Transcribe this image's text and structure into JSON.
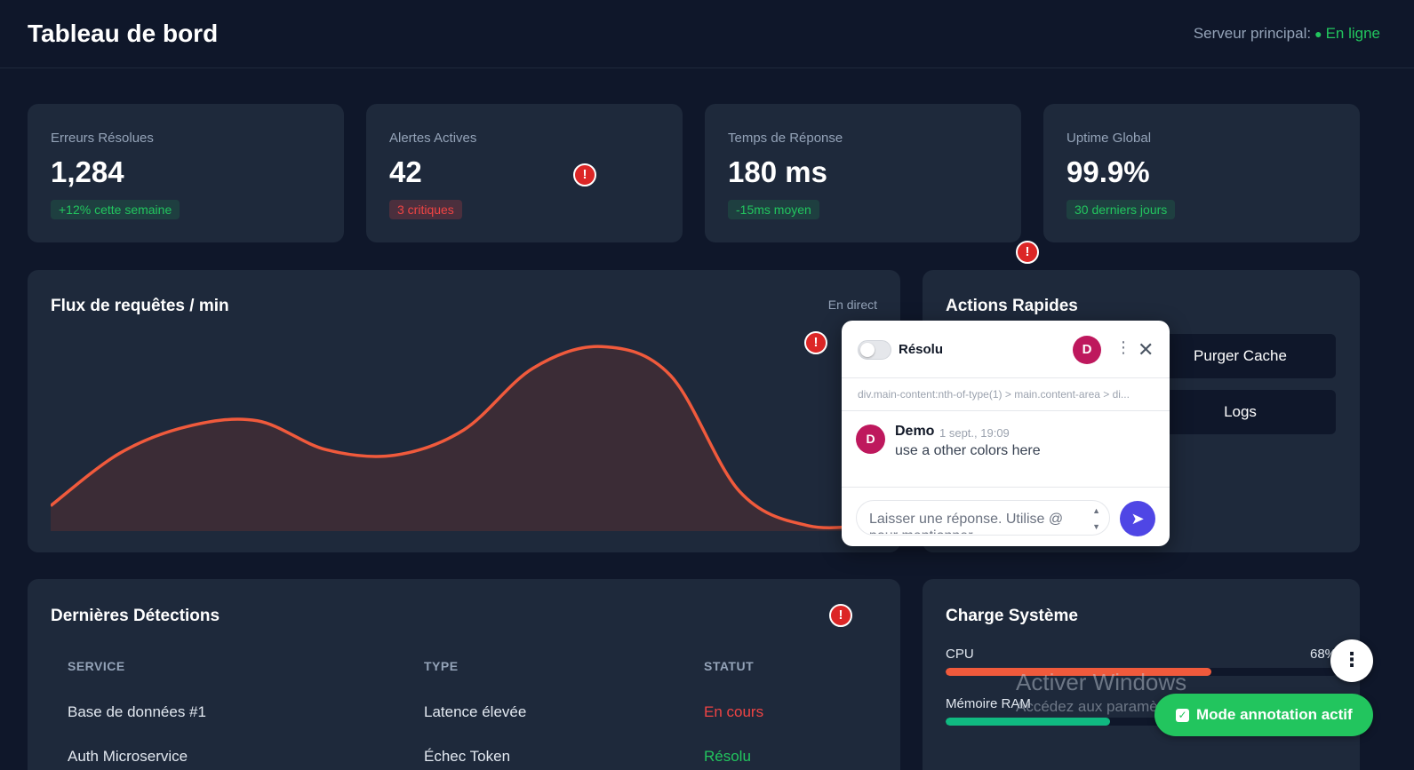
{
  "header": {
    "title": "Tableau de bord",
    "server_label": "Serveur principal:",
    "server_status": "En ligne"
  },
  "stats": [
    {
      "label": "Erreurs Résolues",
      "value": "1,284",
      "badge": "+12% cette semaine"
    },
    {
      "label": "Alertes Actives",
      "value": "42",
      "badge": "3 critiques"
    },
    {
      "label": "Temps de Réponse",
      "value": "180 ms",
      "badge": "-15ms moyen"
    },
    {
      "label": "Uptime Global",
      "value": "99.9%",
      "badge": "30 derniers jours"
    }
  ],
  "traffic": {
    "title": "Flux de requêtes / min",
    "live_label": "En direct"
  },
  "chart_data": {
    "type": "area",
    "title": "Flux de requêtes / min",
    "x": [
      0,
      1,
      2,
      3,
      4,
      5,
      6,
      7,
      8,
      9,
      10,
      11,
      12
    ],
    "values": [
      14,
      43,
      58,
      61,
      45,
      42,
      56,
      90,
      102,
      86,
      22,
      3,
      4
    ],
    "ylim": [
      0,
      110
    ],
    "line_color": "#f05a3c",
    "fill_color": "#3b2c36",
    "grid": false
  },
  "actions": {
    "title": "Actions Rapides",
    "purge_label": "Purger Cache",
    "logs_label": "Logs"
  },
  "detections": {
    "title": "Dernières Détections",
    "columns": [
      "SERVICE",
      "TYPE",
      "STATUT"
    ],
    "rows": [
      {
        "service": "Base de données #1",
        "type": "Latence élevée",
        "status": "En cours"
      },
      {
        "service": "Auth Microservice",
        "type": "Échec Token",
        "status": "Résolu"
      }
    ]
  },
  "system_load": {
    "title": "Charge Système",
    "cpu_label": "CPU",
    "cpu_value": "68%",
    "cpu_fraction": 0.68,
    "ram_label": "Mémoire RAM",
    "ram_fraction": 0.42
  },
  "comment_popup": {
    "toggle_label": "Résolu",
    "avatar_letter": "D",
    "selector": "div.main-content:nth-of-type(1) > main.content-area > di...",
    "author": "Demo",
    "time": "1 sept., 19:09",
    "text": "use a other colors here",
    "reply_placeholder": "Laisser une réponse. Utilise @ pour mentionner"
  },
  "watermark": {
    "title": "Activer Windows",
    "subtitle": "Accédez aux paramètres pour activer Windows."
  },
  "annotation_mode": {
    "label": "Mode annotation actif"
  },
  "colors": {
    "background": "#0f172a",
    "card": "#1e293b",
    "accent_red": "#ef4444",
    "accent_green": "#22c55e",
    "cpu_bar": "#f05a3c",
    "ram_bar": "#10b981"
  },
  "icons": [
    "alert-icon",
    "more-icon",
    "close-icon",
    "send-icon",
    "check-icon"
  ]
}
